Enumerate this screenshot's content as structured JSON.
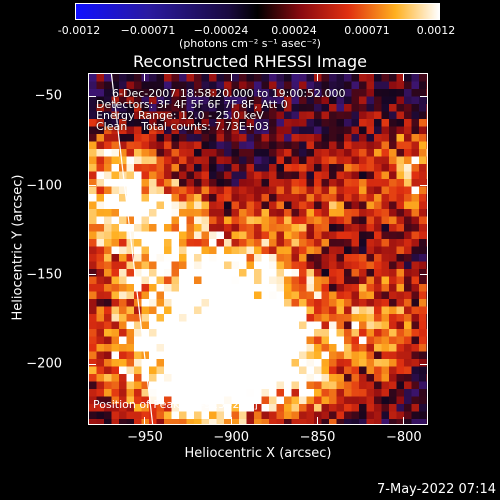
{
  "colorbar": {
    "tick_labels": [
      "-0.0012",
      "−0.00071",
      "−0.00024",
      "0.00024",
      "0.00071",
      "0.0012"
    ],
    "units": "(photons cm⁻² s⁻¹ asec⁻²)",
    "min": -0.0012,
    "max": 0.0012
  },
  "chart_data": {
    "type": "heatmap",
    "title": "Reconstructed RHESSI Image",
    "xlabel": "Heliocentric X (arcsec)",
    "ylabel": "Heliocentric Y (arcsec)",
    "xlim": [
      -983,
      -786
    ],
    "ylim": [
      -234,
      -37
    ],
    "x_ticks": [
      "−950",
      "−900",
      "−850",
      "−800"
    ],
    "x_tick_values": [
      -950,
      -900,
      -850,
      -800
    ],
    "y_ticks": [
      "−50",
      "−100",
      "−150",
      "−200"
    ],
    "y_tick_values": [
      -50,
      -100,
      -150,
      -200
    ],
    "limb_line": [
      [
        -970,
        -37
      ],
      [
        -946,
        -234
      ]
    ],
    "bright_regions": [
      {
        "x": -967,
        "y": -100,
        "level": 0.75
      },
      {
        "x": -905,
        "y": -190,
        "level": 0.95
      },
      {
        "x": -920,
        "y": -210,
        "level": 0.85
      },
      {
        "x": -880,
        "y": -175,
        "level": 0.6
      },
      {
        "x": -945,
        "y": -125,
        "level": 0.55
      },
      {
        "x": -855,
        "y": -205,
        "level": 0.55
      },
      {
        "x": -812,
        "y": -175,
        "level": 0.5
      },
      {
        "x": -795,
        "y": -95,
        "level": 0.55
      },
      {
        "x": -895,
        "y": -145,
        "level": 0.45
      },
      {
        "x": -855,
        "y": -110,
        "level": 0.35
      },
      {
        "x": -975,
        "y": -200,
        "level": 0.4
      },
      {
        "x": -940,
        "y": -160,
        "level": 0.45
      }
    ],
    "annotations": [
      "6-Dec-2007 18:58:20.000 to 19:00:52.000",
      "Detectors: 3F 4F 5F 6F 7F 8F, Att 0",
      "Energy Range: 12.0 - 25.0 keV",
      "Clean    Total counts: 7.73E+03"
    ],
    "peak_label": "Position of Peak = [-913,-219]"
  },
  "footer": {
    "date": "7-May-2022 07:14"
  }
}
